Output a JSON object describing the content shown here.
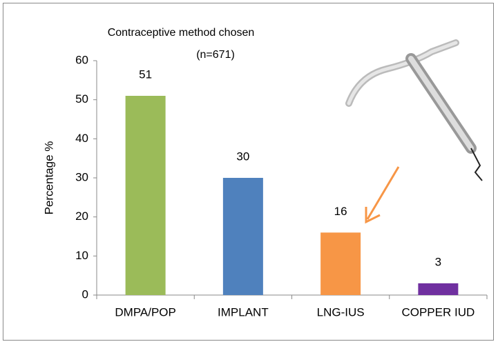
{
  "chart_data": {
    "type": "bar",
    "title": "Contraceptive method chosen",
    "subtitle": "(n=671)",
    "y_label": "Percentage %",
    "categories": [
      "DMPA/POP",
      "IMPLANT",
      "LNG-IUS",
      "COPPER IUD"
    ],
    "values": [
      51,
      30,
      16,
      3
    ],
    "colors": [
      "#9bbb59",
      "#4f81bd",
      "#f79646",
      "#7030a0"
    ],
    "ylim": [
      0,
      60
    ],
    "yticks": [
      0,
      10,
      20,
      30,
      40,
      50,
      60
    ],
    "grid": false
  }
}
